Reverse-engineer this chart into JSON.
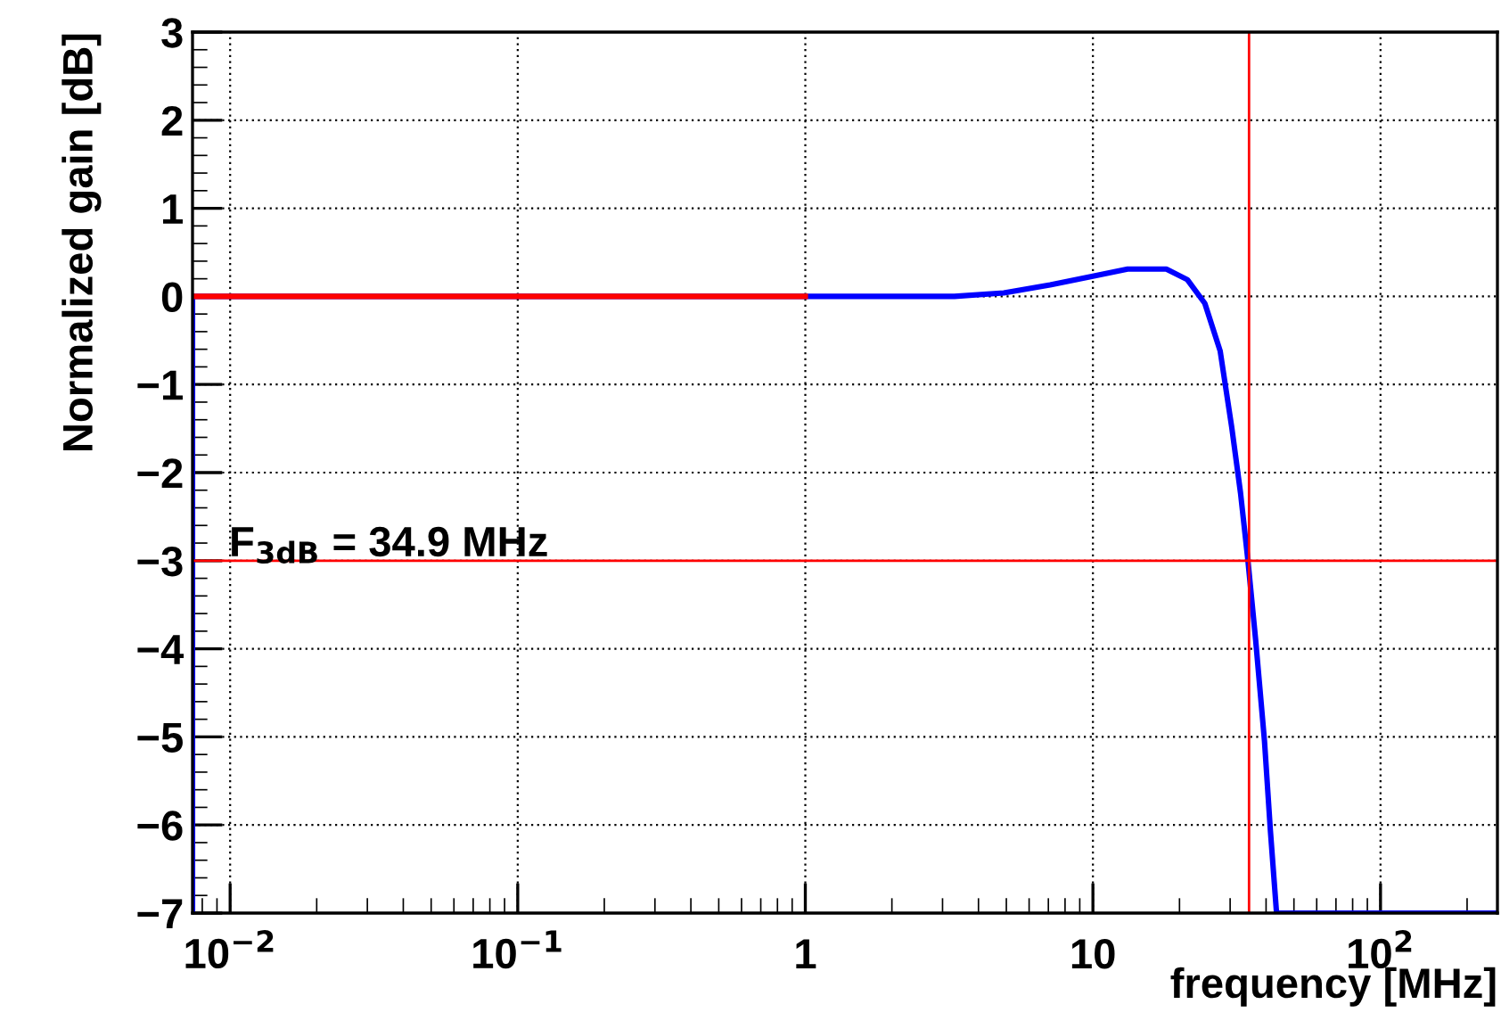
{
  "chart_data": {
    "type": "line",
    "xlabel": "frequency [MHz]",
    "ylabel": "Normalized gain [dB]",
    "log": "x",
    "xlim": [
      0.0074,
      255
    ],
    "ylim": [
      -7,
      3
    ],
    "xticks": [
      {
        "value": 0.01,
        "label": "10$^{−2}$"
      },
      {
        "value": 0.1,
        "label": "10$^{−1}$"
      },
      1,
      10,
      {
        "value": 100,
        "label": "10$^{2}$"
      }
    ],
    "yticks": [
      -7,
      -6,
      -5,
      -4,
      -3,
      -2,
      -1,
      0,
      1,
      2,
      3
    ],
    "grid": true,
    "marker": "none",
    "line_style": "solid",
    "series": [
      {
        "color": "#0000ff",
        "x": [
          0.0074,
          0.0074,
          1,
          3.3,
          4.9,
          7.1,
          10,
          13.2,
          18.0,
          21.3,
          24.5,
          27.7,
          30.4,
          32.6,
          34.6,
          36.8,
          39.5,
          41.4,
          43.5,
          255
        ],
        "values": [
          -7,
          0,
          0,
          0,
          0.04,
          0.13,
          0.23,
          0.31,
          0.31,
          0.19,
          -0.08,
          -0.62,
          -1.49,
          -2.23,
          -3,
          -3.9,
          -5.05,
          -6.06,
          -7,
          -7
        ]
      },
      {
        "color": "#ff0000",
        "x": [
          0.0074,
          1
        ],
        "values": [
          0,
          0
        ]
      }
    ],
    "ref_lines": [
      {
        "axis": "x",
        "value": 34.9,
        "color": "#ff0000"
      },
      {
        "axis": "y",
        "value": -3,
        "color": "#ff0000"
      }
    ],
    "annotations": [
      "F$_{3dB}$ = 34.9 MHz"
    ]
  }
}
